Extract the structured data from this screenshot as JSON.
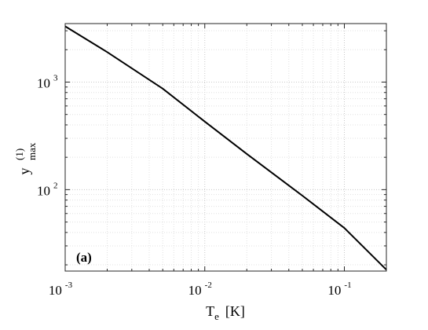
{
  "chart_data": {
    "type": "line",
    "title": "",
    "xlabel": {
      "main": "T",
      "sub": "e",
      "unit": "[K]"
    },
    "ylabel": {
      "main": "y",
      "sup": "(1)",
      "sub": "max"
    },
    "xscale": "log",
    "yscale": "log",
    "xlim": [
      0.001,
      0.2
    ],
    "ylim": [
      17.5,
      3500
    ],
    "xticks": [
      {
        "value": 0.001,
        "base": "10",
        "exp": "-3"
      },
      {
        "value": 0.01,
        "base": "10",
        "exp": "-2"
      },
      {
        "value": 0.1,
        "base": "10",
        "exp": "-1"
      }
    ],
    "yticks": [
      {
        "value": 100,
        "base": "10",
        "exp": "2"
      },
      {
        "value": 1000,
        "base": "10",
        "exp": "3"
      }
    ],
    "grid": true,
    "grid_style": "dotted",
    "panel_label": "(a)",
    "series": [
      {
        "color": "#000000",
        "x": [
          0.001,
          0.002,
          0.005,
          0.01,
          0.02,
          0.05,
          0.1,
          0.2
        ],
        "y": [
          3300,
          1900,
          870,
          430,
          215,
          88,
          44,
          18
        ]
      }
    ]
  }
}
